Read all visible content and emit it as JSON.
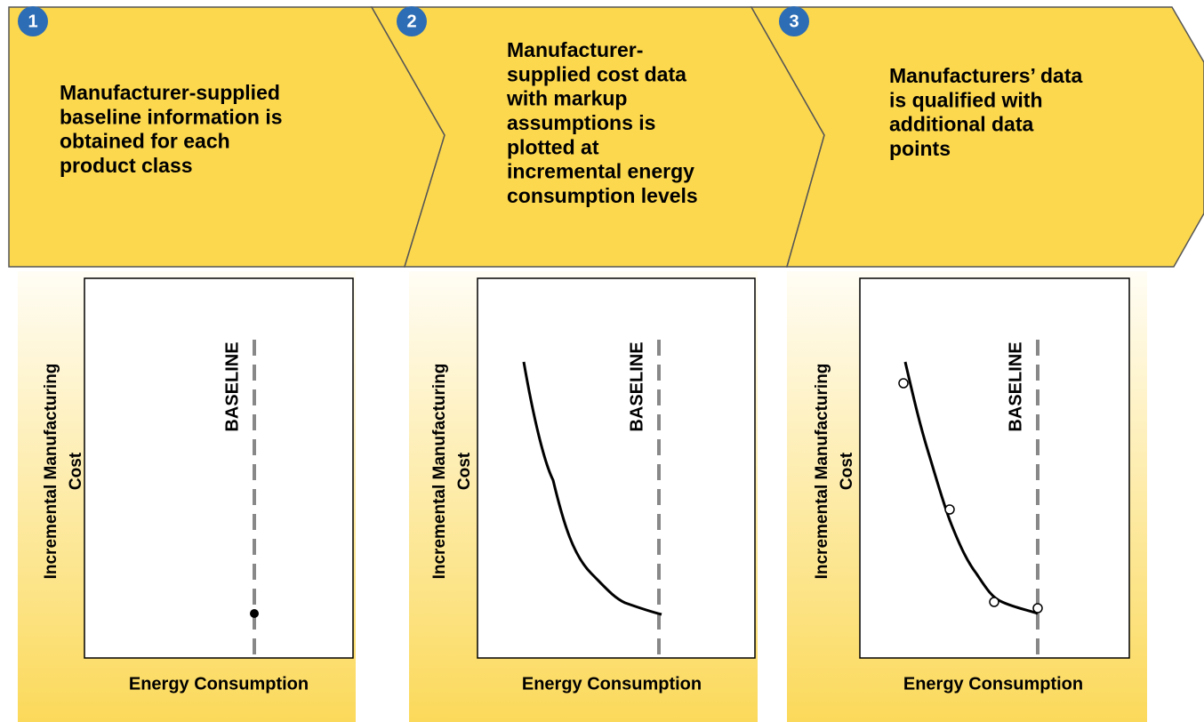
{
  "steps": [
    {
      "number": "1",
      "lines": [
        "Manufacturer-supplied",
        "baseline information is",
        "obtained for each",
        "product class"
      ],
      "y_axis_label": [
        "Incremental Manufacturing",
        "Cost"
      ],
      "x_axis_label": "Energy Consumption",
      "baseline_label": "BASELINE"
    },
    {
      "number": "2",
      "lines": [
        "Manufacturer-",
        "supplied cost data",
        "with markup",
        "assumptions is",
        "plotted at",
        "incremental energy",
        "consumption levels"
      ],
      "y_axis_label": [
        "Incremental Manufacturing",
        "Cost"
      ],
      "x_axis_label": "Energy Consumption",
      "baseline_label": "BASELINE"
    },
    {
      "number": "3",
      "lines": [
        "Manufacturers’ data",
        "is qualified with",
        "additional data",
        "points"
      ],
      "y_axis_label": [
        "Incremental Manufacturing",
        "Cost"
      ],
      "x_axis_label": "Energy Consumption",
      "baseline_label": "BASELINE"
    }
  ]
}
